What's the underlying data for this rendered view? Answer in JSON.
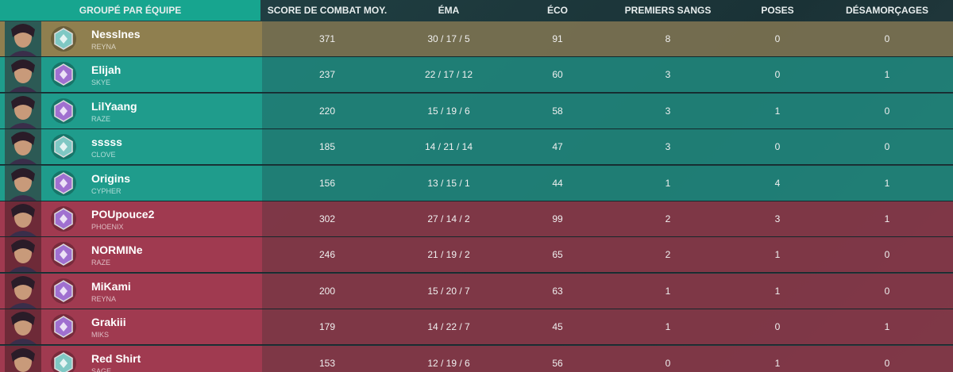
{
  "header": [
    "GROUPÉ PAR ÉQUIPE",
    "SCORE DE COMBAT MOY.",
    "ÉMA",
    "ÉCO",
    "PREMIERS SANGS",
    "POSES",
    "DÉSAMORÇAGES"
  ],
  "rows": [
    {
      "name": "Nesslnes",
      "agent": "REYNA",
      "score": 371,
      "kda": "30 / 17 / 5",
      "eco": 91,
      "first_bloods": 8,
      "plants": 0,
      "defuses": 0
    },
    {
      "name": "Elijah",
      "agent": "SKYE",
      "score": 237,
      "kda": "22 / 17 / 12",
      "eco": 60,
      "first_bloods": 3,
      "plants": 0,
      "defuses": 1
    },
    {
      "name": "LilYaang",
      "agent": "RAZE",
      "score": 220,
      "kda": "15 / 19 / 6",
      "eco": 58,
      "first_bloods": 3,
      "plants": 1,
      "defuses": 0
    },
    {
      "name": "sssss",
      "agent": "CLOVE",
      "score": 185,
      "kda": "14 / 21 / 14",
      "eco": 47,
      "first_bloods": 3,
      "plants": 0,
      "defuses": 0
    },
    {
      "name": "Origins",
      "agent": "CYPHER",
      "score": 156,
      "kda": "13 / 15 / 1",
      "eco": 44,
      "first_bloods": 1,
      "plants": 4,
      "defuses": 1
    },
    {
      "name": "POUpouce2",
      "agent": "PHOENIX",
      "score": 302,
      "kda": "27 / 14 / 2",
      "eco": 99,
      "first_bloods": 2,
      "plants": 3,
      "defuses": 1
    },
    {
      "name": "NORMINe",
      "agent": "RAZE",
      "score": 246,
      "kda": "21 / 19 / 2",
      "eco": 65,
      "first_bloods": 2,
      "plants": 1,
      "defuses": 0
    },
    {
      "name": "MiKami",
      "agent": "REYNA",
      "score": 200,
      "kda": "15 / 20 / 7",
      "eco": 63,
      "first_bloods": 1,
      "plants": 1,
      "defuses": 0
    },
    {
      "name": "Grakiii",
      "agent": "MIKS",
      "score": 179,
      "kda": "14 / 22 / 7",
      "eco": 45,
      "first_bloods": 1,
      "plants": 0,
      "defuses": 1
    },
    {
      "name": "Red Shirt",
      "agent": "SAGE",
      "score": 153,
      "kda": "12 / 19 / 6",
      "eco": 56,
      "first_bloods": 0,
      "plants": 1,
      "defuses": 0
    }
  ]
}
